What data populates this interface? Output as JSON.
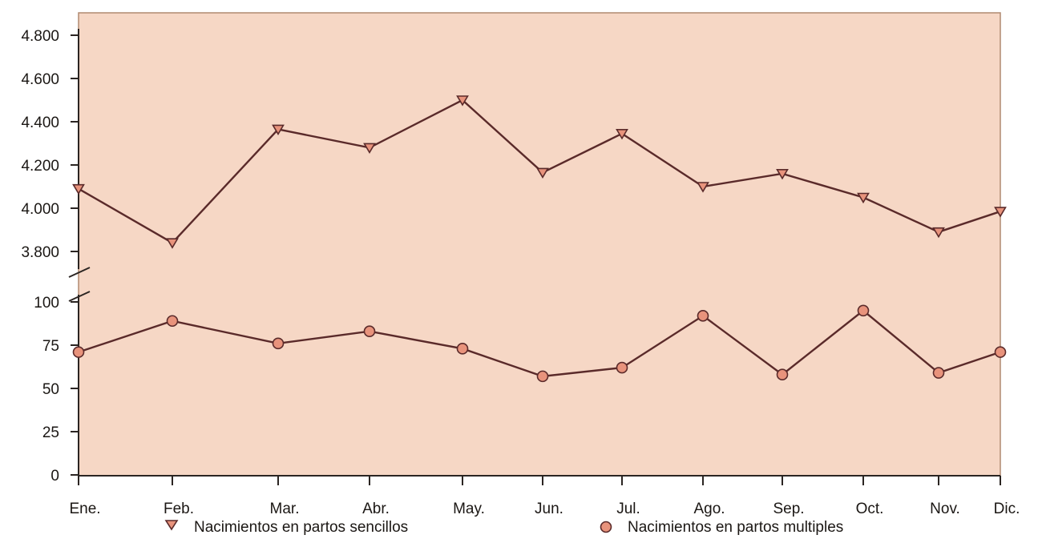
{
  "chart_data": {
    "type": "line",
    "categories": [
      "Ene.",
      "Feb.",
      "Mar.",
      "Abr.",
      "May.",
      "Jun.",
      "Jul.",
      "Ago.",
      "Sep.",
      "Oct.",
      "Nov.",
      "Dic."
    ],
    "upper_axis": {
      "ticks": [
        3800,
        4000,
        4200,
        4400,
        4600,
        4800
      ],
      "tick_labels": [
        "3.800",
        "4.000",
        "4.200",
        "4.400",
        "4.600",
        "4.800"
      ]
    },
    "lower_axis": {
      "ticks": [
        0,
        25,
        50,
        75,
        100
      ],
      "tick_labels": [
        "0",
        "25",
        "50",
        "75",
        "100"
      ]
    },
    "axis_break": true,
    "grid": false,
    "series": [
      {
        "name": "Nacimientos en partos sencillos",
        "marker": "triangle-down",
        "axis": "upper",
        "values": [
          4090,
          3840,
          4365,
          4280,
          4500,
          4165,
          4345,
          4100,
          4160,
          4050,
          3890,
          3985
        ]
      },
      {
        "name": "Nacimientos en partos multiples",
        "marker": "circle",
        "axis": "lower",
        "values": [
          71,
          89,
          76,
          83,
          73,
          57,
          62,
          92,
          58,
          95,
          59,
          71
        ]
      }
    ],
    "legend": {
      "position": "bottom",
      "items": [
        "Nacimientos en partos sencillos",
        "Nacimientos en partos multiples"
      ]
    },
    "colors": {
      "plot_background": "#f6d7c5",
      "plot_border": "#b08a70",
      "line": "#5a2a2a",
      "marker_fill": "#e8937c",
      "text": "#1b1714"
    }
  }
}
